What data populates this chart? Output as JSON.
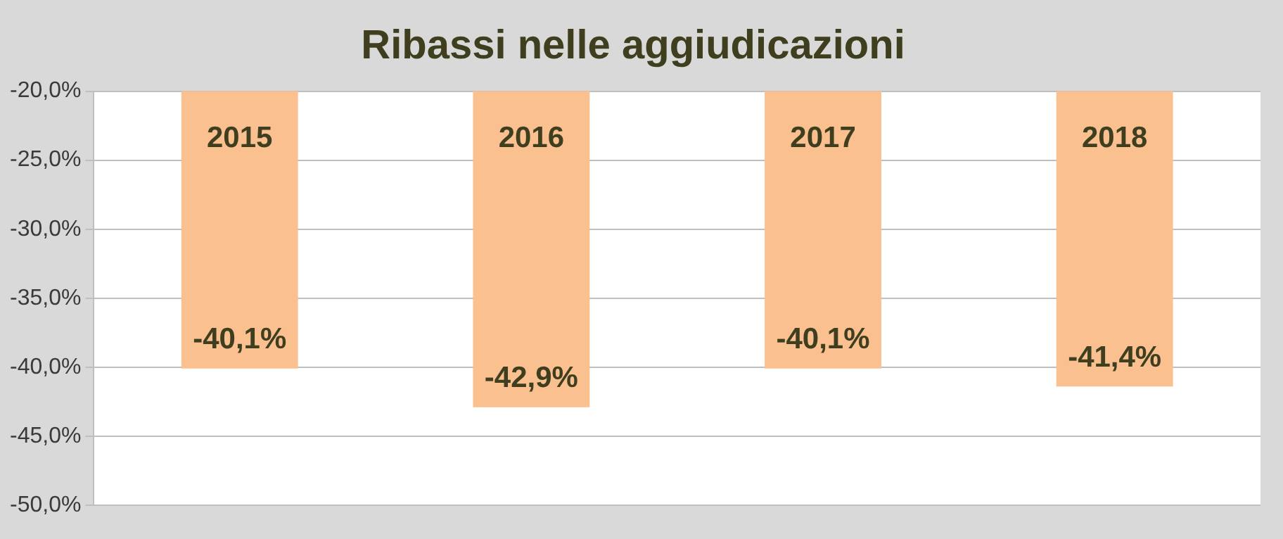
{
  "chart_data": {
    "type": "bar",
    "title": "Ribassi nelle aggiudicazioni",
    "categories": [
      "2015",
      "2016",
      "2017",
      "2018"
    ],
    "values": [
      -40.1,
      -42.9,
      -40.1,
      -41.4
    ],
    "value_labels": [
      "-40,1%",
      "-42,9%",
      "-40,1%",
      "-41,4%"
    ],
    "color": "#fac090",
    "ylim": [
      -50,
      -20
    ],
    "yticks": [
      {
        "value": -20,
        "label": "-20,0%"
      },
      {
        "value": -25,
        "label": "-25,0%"
      },
      {
        "value": -30,
        "label": "-30,0%"
      },
      {
        "value": -35,
        "label": "-35,0%"
      },
      {
        "value": -40,
        "label": "-40,0%"
      },
      {
        "value": -45,
        "label": "-45,0%"
      },
      {
        "value": -50,
        "label": "-50,0%"
      }
    ],
    "grid": "y",
    "legend": false
  }
}
